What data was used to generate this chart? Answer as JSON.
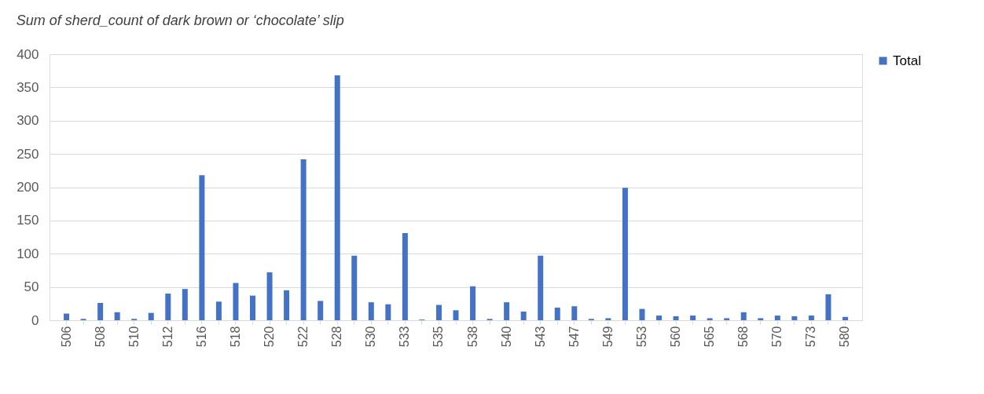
{
  "chart_data": {
    "type": "bar",
    "title": "Sum of sherd_count of dark brown or ‘chocolate’ slip",
    "categories": [
      "506",
      null,
      "508",
      null,
      "510",
      null,
      "512",
      null,
      "516",
      null,
      "518",
      null,
      "520",
      null,
      "522",
      null,
      "528",
      null,
      "530",
      null,
      "533",
      null,
      "535",
      null,
      "538",
      null,
      "540",
      null,
      "543",
      null,
      "547",
      null,
      "549",
      null,
      "553",
      null,
      "560",
      null,
      "565",
      null,
      "568",
      null,
      "570",
      null,
      "573",
      null,
      "580"
    ],
    "series": [
      {
        "name": "Total",
        "color": "#4472c4",
        "values": [
          10,
          2,
          26,
          12,
          2,
          11,
          40,
          47,
          218,
          28,
          56,
          37,
          72,
          45,
          242,
          29,
          368,
          97,
          27,
          24,
          131,
          1,
          23,
          15,
          51,
          2,
          27,
          13,
          97,
          19,
          21,
          2,
          3,
          199,
          17,
          7,
          6,
          7,
          3,
          3,
          12,
          3,
          7,
          6,
          7,
          39,
          5
        ]
      }
    ],
    "ylim": [
      0,
      400
    ],
    "yticks": [
      0,
      50,
      100,
      150,
      200,
      250,
      300,
      350,
      400
    ],
    "grid": "y",
    "legend": "right"
  }
}
